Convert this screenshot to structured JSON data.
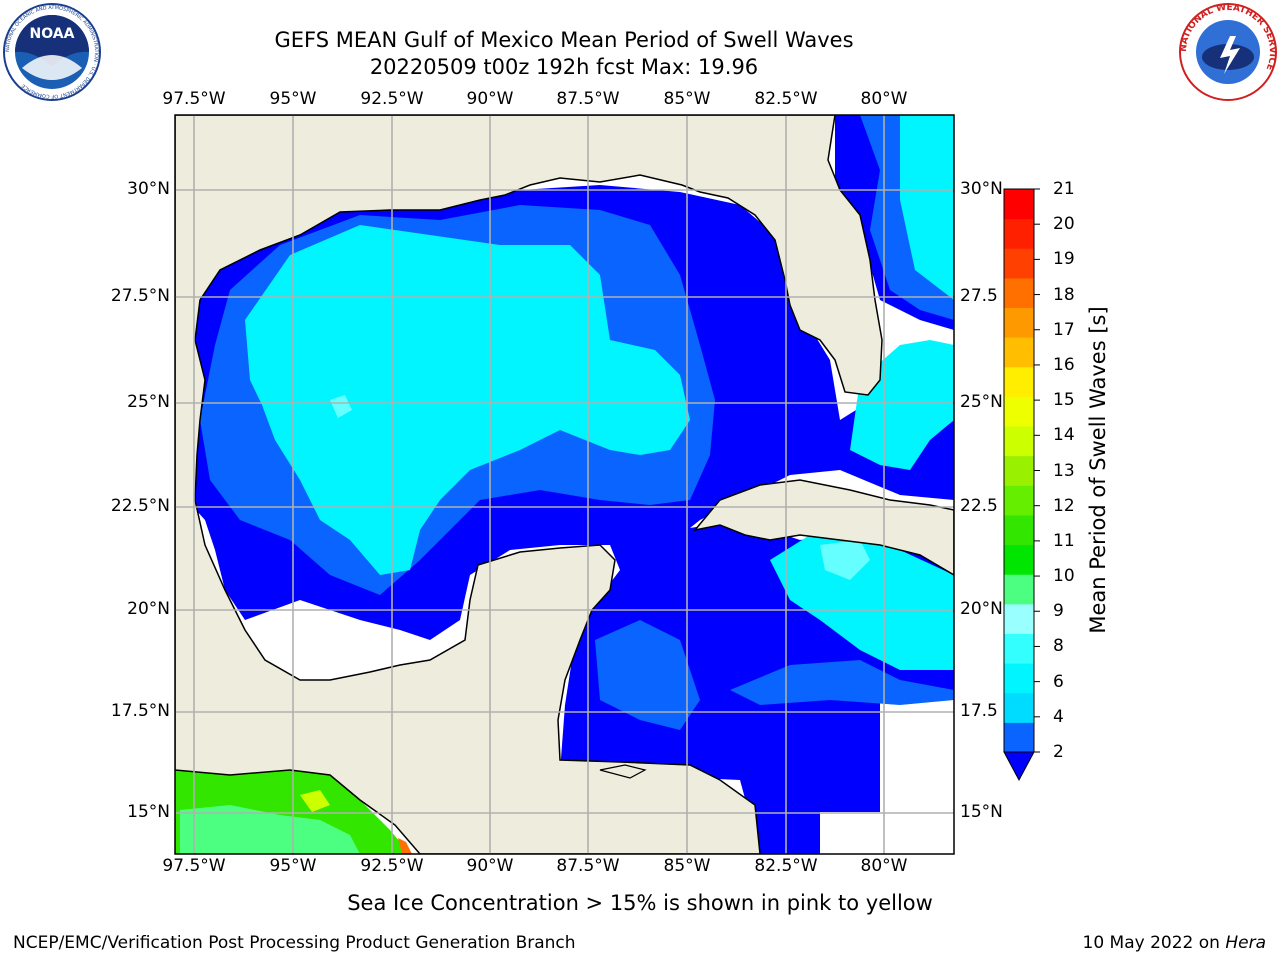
{
  "title_line1": "GEFS MEAN Gulf of Mexico Mean Period of Swell Waves",
  "title_line2": "20220509 t00z 192h fcst   Max: 19.96",
  "lon_labels": [
    "97.5°W",
    "95°W",
    "92.5°W",
    "90°W",
    "87.5°W",
    "85°W",
    "82.5°W",
    "80°W"
  ],
  "lat_labels": [
    "30°N",
    "27.5°N",
    "25°N",
    "22.5°N",
    "20°N",
    "17.5°N",
    "15°N"
  ],
  "lat_labels_right": [
    "30°N",
    "27.5",
    "25°N",
    "22.5",
    "20°N",
    "17.5",
    "15°N"
  ],
  "colorbar": {
    "title": "Mean Period of Swell Waves [s]",
    "ticks": [
      "2",
      "4",
      "6",
      "8",
      "9",
      "10",
      "11",
      "12",
      "13",
      "14",
      "15",
      "16",
      "17",
      "18",
      "19",
      "20",
      "21"
    ],
    "colors": [
      "#0a64ff",
      "#00dcff",
      "#00f5ff",
      "#33ffff",
      "#99ffff",
      "#4cff80",
      "#00e600",
      "#33e600",
      "#66ee00",
      "#99f000",
      "#ccff00",
      "#eeff00",
      "#ffee00",
      "#ffbf00",
      "#ff9900",
      "#ff7000",
      "#ff4000",
      "#ff2000",
      "#ff0000"
    ],
    "extend_color": "#0000ff"
  },
  "note": "Sea Ice Concentration > 15% is shown in pink to yellow",
  "footer_left": "NCEP/EMC/Verification Post Processing Product Generation Branch",
  "footer_date": "10 May 2022 on",
  "footer_host": "Hera",
  "logos": {
    "noaa_text": "NOAA",
    "noaa_ring_text": "NATIONAL OCEANIC AND ATMOSPHERIC ADMINISTRATION · U.S. DEPARTMENT OF COMMERCE",
    "nws_ring_text": "NATIONAL WEATHER SERVICE"
  },
  "colors": {
    "land": "#eeecdc",
    "no_data": "#ffffff",
    "grid": "#b0b0b0"
  }
}
